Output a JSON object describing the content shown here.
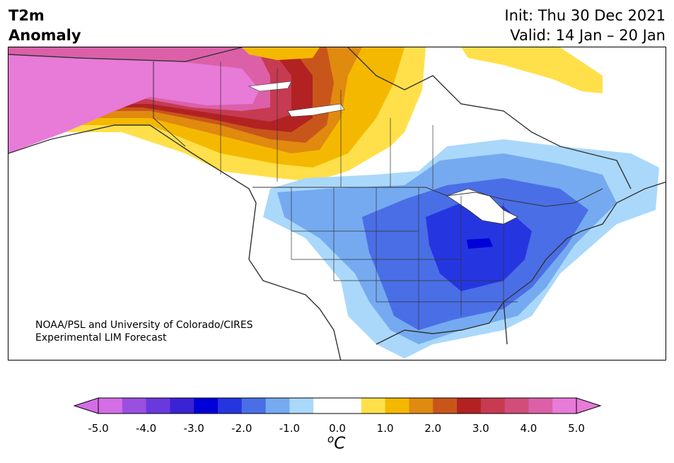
{
  "title": {
    "line1": "T2m",
    "line2": "Anomaly"
  },
  "dates": {
    "init": "Init: Thu 30 Dec 2021",
    "valid": "Valid: 14 Jan – 20 Jan"
  },
  "credit": {
    "line1": "NOAA/PSL and University of Colorado/CIRES",
    "line2": "Experimental LIM Forecast"
  },
  "colorbar": {
    "ticks": [
      "-5.0",
      "-4.0",
      "-3.0",
      "-2.0",
      "-1.0",
      "0.0",
      "1.0",
      "2.0",
      "3.0",
      "4.0",
      "5.0"
    ],
    "unit_super": "o",
    "unit": "C",
    "colors": [
      "#d36ee6",
      "#9a4fe0",
      "#6a39dd",
      "#3a22d5",
      "#0000d8",
      "#2536e0",
      "#4a6ee6",
      "#75aaf0",
      "#aad8fb",
      "#ffffff",
      "#ffffff",
      "#ffe04a",
      "#f5b800",
      "#e08a10",
      "#c8561a",
      "#b22222",
      "#c63a52",
      "#d14e7a",
      "#db60a8",
      "#e87ad8"
    ]
  },
  "map_colors": {
    "coast": "#333333",
    "land": "#ffffff"
  }
}
